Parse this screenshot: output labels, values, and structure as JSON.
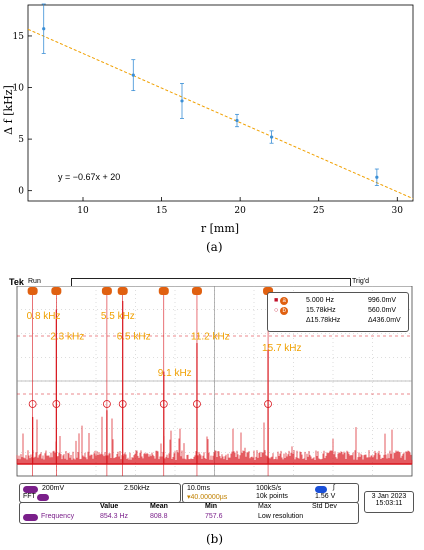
{
  "figure_a": {
    "caption": "(a)",
    "chart_data": {
      "type": "scatter",
      "xlabel": "r [mm]",
      "ylabel": "Δ f [kHz]",
      "xlim": [
        6.5,
        31
      ],
      "ylim": [
        -1,
        18
      ],
      "xticks": [
        "10",
        "15",
        "20",
        "25",
        "30"
      ],
      "yticks": [
        "0",
        "5",
        "10",
        "15"
      ],
      "points": [
        {
          "x": 7.5,
          "y": 15.7,
          "err": 2.4
        },
        {
          "x": 13.2,
          "y": 11.2,
          "err": 1.5
        },
        {
          "x": 16.3,
          "y": 8.7,
          "err": 1.7
        },
        {
          "x": 19.8,
          "y": 6.8,
          "err": 0.6
        },
        {
          "x": 22.0,
          "y": 5.2,
          "err": 0.6
        },
        {
          "x": 28.7,
          "y": 1.3,
          "err": 0.8
        }
      ],
      "fit": {
        "slope": -0.67,
        "intercept": 20,
        "label": "y = −0.67x + 20"
      },
      "colors": {
        "points": "#3b8fd6",
        "fit": "#f0a000"
      }
    }
  },
  "figure_b": {
    "caption": "(b)",
    "brand": "Tek",
    "run": "Run",
    "trig": "Trig'd",
    "chart_data": {
      "type": "bar",
      "annotations": [
        {
          "label": "0.8 kHz",
          "x": 0.8,
          "ylevel": 0.88
        },
        {
          "label": "2.3 kHz",
          "x": 2.3,
          "ylevel": 0.77
        },
        {
          "label": "5.5 kHz",
          "x": 5.5,
          "ylevel": 0.88
        },
        {
          "label": "6.5 kHz",
          "x": 6.5,
          "ylevel": 0.77
        },
        {
          "label": "11.2 kHz",
          "x": 11.2,
          "ylevel": 0.77
        },
        {
          "label": "9.1 kHz",
          "x": 9.1,
          "ylevel": 0.58
        },
        {
          "label": "15.7 kHz",
          "x": 15.7,
          "ylevel": 0.71
        }
      ],
      "peaks": [
        {
          "x": 0.8,
          "h": 0.28
        },
        {
          "x": 2.3,
          "h": 0.92
        },
        {
          "x": 5.5,
          "h": 0.32
        },
        {
          "x": 6.5,
          "h": 0.97
        },
        {
          "x": 9.1,
          "h": 0.55
        },
        {
          "x": 11.2,
          "h": 0.72
        },
        {
          "x": 15.7,
          "h": 0.68
        }
      ],
      "markers_top": [
        0.8,
        2.3,
        5.5,
        6.5,
        9.1,
        11.2,
        15.7
      ],
      "colors": {
        "trace": "#d8141c",
        "annot": "#f0a000",
        "marker": "#e06010"
      }
    },
    "cursor_panel": {
      "a_freq": "5.000 Hz",
      "a_val": "996.0mV",
      "b_freq": "15.78kHz",
      "b_val": "560.0mV",
      "d_freq": "Δ15.78kHz",
      "d_val": "Δ436.0mV"
    },
    "status": {
      "ch_scale": "200mV",
      "math_label": "FFT",
      "math_scale": "2.50kHz",
      "timebase": "10.0ms",
      "trig_pos": "▾40.00000µs",
      "sample_rate": "100kS/s",
      "points": "10k points",
      "trig_level": "1.56 V",
      "trig_icon": "∫",
      "date": "3 Jan  2023",
      "time": "15:03:11"
    },
    "measure": {
      "headers": [
        "Value",
        "Mean",
        "Min",
        "Max",
        "Std Dev"
      ],
      "name": "Frequency",
      "value": "854.3 Hz",
      "mean": "808.8",
      "min": "757.6",
      "note": "Low resolution"
    }
  }
}
